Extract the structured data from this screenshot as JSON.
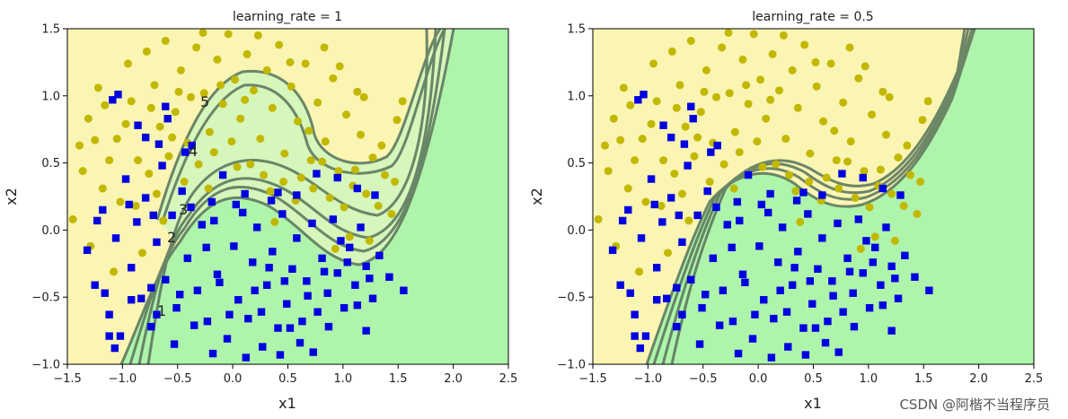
{
  "watermark": "CSDN @阿楷不当程序员",
  "colors": {
    "region_yellow": "#faf5b3",
    "region_green": "#aef4ab",
    "region_lightgreen": "#d6f6bc",
    "boundary": "#5e7a5e",
    "class0": "#c2b800",
    "class1": "#0000e0"
  },
  "chart_data": [
    {
      "type": "scatter",
      "title": "learning_rate = 1",
      "xlabel": "x1",
      "ylabel": "x2",
      "xlim": [
        -1.5,
        2.5
      ],
      "ylim": [
        -1.0,
        1.5
      ],
      "xticks": [
        "−1.5",
        "−1.0",
        "−0.5",
        "0.0",
        "0.5",
        "1.0",
        "1.5",
        "2.0",
        "2.5"
      ],
      "yticks": [
        "−1.0",
        "−0.5",
        "0.0",
        "0.5",
        "1.0",
        "1.5"
      ],
      "iteration_labels": [
        {
          "text": "1",
          "x": -0.68,
          "y": -0.61
        },
        {
          "text": "2",
          "x": -0.57,
          "y": -0.05
        },
        {
          "text": "3",
          "x": -0.47,
          "y": 0.14
        },
        {
          "text": "4",
          "x": -0.35,
          "y": 0.58
        },
        {
          "text": "5",
          "x": -0.25,
          "y": 0.92
        }
      ]
    },
    {
      "type": "scatter",
      "title": "learning_rate = 0.5",
      "xlabel": "x1",
      "ylabel": "x2",
      "xlim": [
        -1.5,
        2.5
      ],
      "ylim": [
        -1.0,
        1.5
      ],
      "xticks": [
        "−1.5",
        "−1.0",
        "−0.5",
        "0.0",
        "0.5",
        "1.0",
        "1.5",
        "2.0",
        "2.5"
      ],
      "yticks": [
        "−1.0",
        "−0.5",
        "0.0",
        "0.5",
        "1.0",
        "1.5"
      ],
      "iteration_labels": []
    }
  ],
  "series": [
    {
      "name": "class 0 (yellow circles)",
      "marker": "circle",
      "points": [
        [
          -1.39,
          0.63
        ],
        [
          -1.31,
          0.83
        ],
        [
          -1.22,
          1.06
        ],
        [
          -1.05,
          0.68
        ],
        [
          -0.95,
          1.24
        ],
        [
          -0.92,
          0.96
        ],
        [
          -0.86,
          0.52
        ],
        [
          -0.78,
          1.33
        ],
        [
          -0.71,
          1.08
        ],
        [
          -0.66,
          0.77
        ],
        [
          -0.61,
          1.41
        ],
        [
          -0.52,
          0.88
        ],
        [
          -0.47,
          1.19
        ],
        [
          -0.41,
          0.65
        ],
        [
          -0.33,
          1.36
        ],
        [
          -0.26,
          1.02
        ],
        [
          -0.21,
          0.73
        ],
        [
          -0.14,
          1.27
        ],
        [
          -0.09,
          0.94
        ],
        [
          -0.04,
          1.46
        ],
        [
          0.02,
          1.12
        ],
        [
          0.07,
          0.83
        ],
        [
          0.13,
          1.31
        ],
        [
          0.19,
          1.04
        ],
        [
          0.25,
          0.68
        ],
        [
          0.31,
          1.19
        ],
        [
          0.36,
          0.91
        ],
        [
          0.42,
          1.38
        ],
        [
          0.47,
          0.57
        ],
        [
          0.53,
          1.07
        ],
        [
          0.59,
          0.81
        ],
        [
          0.66,
          1.24
        ],
        [
          0.71,
          0.52
        ],
        [
          0.77,
          0.95
        ],
        [
          0.84,
          0.66
        ],
        [
          0.91,
          1.13
        ],
        [
          0.96,
          0.44
        ],
        [
          1.03,
          0.86
        ],
        [
          1.09,
          0.33
        ],
        [
          1.16,
          0.71
        ],
        [
          1.21,
          0.27
        ],
        [
          1.27,
          0.54
        ],
        [
          1.32,
          0.18
        ],
        [
          1.38,
          0.41
        ],
        [
          1.44,
          0.12
        ],
        [
          1.49,
          0.82
        ],
        [
          1.54,
          0.96
        ],
        [
          1.13,
          1.03
        ],
        [
          0.62,
          0.39
        ],
        [
          0.34,
          0.29
        ],
        [
          -1.45,
          0.08
        ],
        [
          -1.36,
          0.44
        ],
        [
          -1.18,
          0.31
        ],
        [
          -1.12,
          0.52
        ],
        [
          -1.02,
          0.21
        ],
        [
          -0.88,
          0.18
        ],
        [
          -0.76,
          0.42
        ],
        [
          -0.69,
          0.27
        ],
        [
          -0.58,
          0.55
        ],
        [
          -0.44,
          0.36
        ],
        [
          -0.38,
          0.99
        ],
        [
          -0.17,
          0.58
        ],
        [
          -0.01,
          0.66
        ],
        [
          0.16,
          0.49
        ],
        [
          0.28,
          0.41
        ],
        [
          0.46,
          0.36
        ],
        [
          0.57,
          0.22
        ],
        [
          0.73,
          0.31
        ],
        [
          0.88,
          0.24
        ],
        [
          1.01,
          0.17
        ],
        [
          1.11,
          0.45
        ],
        [
          0.83,
          1.36
        ],
        [
          0.23,
          1.45
        ],
        [
          -0.27,
          1.47
        ],
        [
          -0.55,
          0.69
        ],
        [
          -0.97,
          0.79
        ],
        [
          -1.25,
          0.67
        ],
        [
          -1.08,
          -0.31
        ],
        [
          -1.29,
          -0.12
        ],
        [
          -0.82,
          -0.17
        ],
        [
          1.24,
          -0.08
        ],
        [
          0.93,
          -0.14
        ],
        [
          1.06,
          -0.05
        ],
        [
          0.38,
          0.06
        ],
        [
          -0.63,
          0.07
        ],
        [
          0.69,
          0.74
        ],
        [
          0.52,
          1.25
        ],
        [
          -0.11,
          1.08
        ],
        [
          0.11,
          0.97
        ],
        [
          -0.49,
          1.03
        ],
        [
          1.47,
          0.36
        ],
        [
          1.35,
          0.63
        ],
        [
          1.19,
          0.99
        ],
        [
          0.97,
          1.22
        ],
        [
          0.04,
          0.47
        ],
        [
          -0.31,
          0.49
        ],
        [
          -0.74,
          0.91
        ],
        [
          -1.16,
          0.93
        ],
        [
          -0.22,
          0.31
        ],
        [
          0.81,
          0.51
        ]
      ]
    },
    {
      "name": "class 1 (blue squares)",
      "marker": "square",
      "points": [
        [
          -1.32,
          -0.15
        ],
        [
          -1.25,
          -0.41
        ],
        [
          -1.18,
          0.15
        ],
        [
          -1.12,
          -0.63
        ],
        [
          -1.06,
          -0.06
        ],
        [
          -1.02,
          -0.79
        ],
        [
          -0.97,
          0.38
        ],
        [
          -0.92,
          -0.28
        ],
        [
          -0.87,
          0.06
        ],
        [
          -0.83,
          -0.51
        ],
        [
          -0.79,
          0.24
        ],
        [
          -0.74,
          -0.72
        ],
        [
          -0.69,
          -0.09
        ],
        [
          -0.64,
          0.48
        ],
        [
          -0.61,
          -0.37
        ],
        [
          -0.55,
          0.11
        ],
        [
          -0.51,
          -0.58
        ],
        [
          -0.46,
          0.29
        ],
        [
          -0.41,
          -0.21
        ],
        [
          -0.37,
          0.63
        ],
        [
          -0.32,
          -0.45
        ],
        [
          -0.28,
          0.04
        ],
        [
          -0.23,
          -0.68
        ],
        [
          -0.19,
          0.21
        ],
        [
          -0.14,
          -0.33
        ],
        [
          -0.09,
          0.41
        ],
        [
          -0.05,
          -0.81
        ],
        [
          0.01,
          -0.12
        ],
        [
          0.05,
          -0.52
        ],
        [
          0.09,
          0.13
        ],
        [
          0.14,
          -0.66
        ],
        [
          0.18,
          -0.24
        ],
        [
          0.22,
          0.02
        ],
        [
          0.27,
          -0.87
        ],
        [
          0.31,
          -0.41
        ],
        [
          0.36,
          -0.16
        ],
        [
          0.41,
          -0.73
        ],
        [
          0.45,
          0.12
        ],
        [
          0.49,
          -0.55
        ],
        [
          0.54,
          -0.29
        ],
        [
          0.58,
          -0.06
        ],
        [
          0.63,
          -0.68
        ],
        [
          0.67,
          -0.38
        ],
        [
          0.72,
          0.05
        ],
        [
          0.77,
          -0.61
        ],
        [
          0.81,
          -0.21
        ],
        [
          0.86,
          -0.47
        ],
        [
          0.91,
          0.08
        ],
        [
          0.95,
          -0.32
        ],
        [
          1.01,
          -0.58
        ],
        [
          1.06,
          -0.13
        ],
        [
          1.11,
          -0.41
        ],
        [
          1.16,
          0.02
        ],
        [
          1.21,
          -0.27
        ],
        [
          1.27,
          -0.51
        ],
        [
          1.33,
          -0.19
        ],
        [
          1.42,
          -0.35
        ],
        [
          1.55,
          -0.45
        ],
        [
          -0.59,
          0.83
        ],
        [
          -0.79,
          0.69
        ],
        [
          -1.09,
          0.97
        ],
        [
          -1.04,
          1.01
        ],
        [
          -0.67,
          0.64
        ],
        [
          -0.43,
          0.58
        ],
        [
          -0.61,
          0.92
        ],
        [
          -0.86,
          0.78
        ],
        [
          0.41,
          0.28
        ],
        [
          0.58,
          0.26
        ],
        [
          0.76,
          0.42
        ],
        [
          0.95,
          0.39
        ],
        [
          1.13,
          0.31
        ],
        [
          1.29,
          0.26
        ],
        [
          -1.12,
          -0.79
        ],
        [
          -1.07,
          -0.88
        ],
        [
          -0.74,
          -0.43
        ],
        [
          -0.53,
          -0.85
        ],
        [
          -0.18,
          -0.92
        ],
        [
          0.12,
          -0.95
        ],
        [
          0.43,
          -0.93
        ],
        [
          0.73,
          -0.91
        ],
        [
          1.21,
          -0.75
        ],
        [
          1.13,
          -0.56
        ],
        [
          0.87,
          -0.72
        ],
        [
          0.61,
          -0.84
        ],
        [
          -0.35,
          -0.71
        ],
        [
          -0.03,
          -0.63
        ],
        [
          0.26,
          -0.61
        ],
        [
          0.52,
          -0.73
        ],
        [
          -0.69,
          -0.63
        ],
        [
          -0.92,
          -0.52
        ],
        [
          -1.16,
          -0.47
        ],
        [
          -0.24,
          -0.13
        ],
        [
          0.03,
          0.19
        ],
        [
          0.33,
          -0.28
        ],
        [
          0.68,
          -0.49
        ],
        [
          0.98,
          -0.08
        ],
        [
          1.24,
          -0.36
        ],
        [
          -0.48,
          -0.48
        ],
        [
          -0.12,
          -0.39
        ],
        [
          0.2,
          -0.45
        ],
        [
          0.47,
          -0.38
        ],
        [
          0.83,
          -0.31
        ],
        [
          1.04,
          -0.24
        ],
        [
          -0.72,
          0.11
        ],
        [
          -0.94,
          0.19
        ],
        [
          -1.23,
          0.07
        ],
        [
          -0.38,
          0.17
        ],
        [
          -0.17,
          0.07
        ],
        [
          0.11,
          0.27
        ],
        [
          0.35,
          0.22
        ]
      ]
    }
  ]
}
